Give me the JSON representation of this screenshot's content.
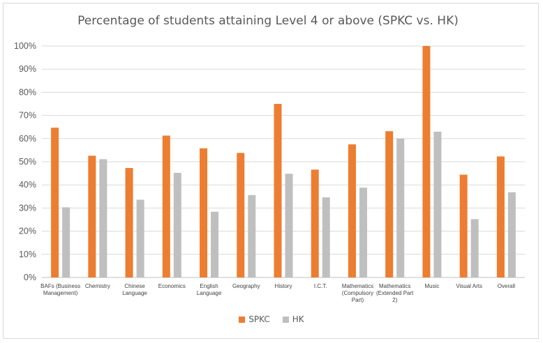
{
  "chart_data": {
    "type": "bar",
    "title": "Percentage of students attaining Level 4 or above (SPKC vs. HK)",
    "xlabel": "",
    "ylabel": "",
    "ylim": [
      0,
      100
    ],
    "yticks": [
      "0%",
      "10%",
      "20%",
      "30%",
      "40%",
      "50%",
      "60%",
      "70%",
      "80%",
      "90%",
      "100%"
    ],
    "grid": "horizontal",
    "legend_position": "bottom",
    "categories": [
      [
        "BAFs (Business",
        "Management)"
      ],
      [
        "Chemistry"
      ],
      [
        "Chinese",
        "Language"
      ],
      [
        "Economics"
      ],
      [
        "English",
        "Language"
      ],
      [
        "Geography"
      ],
      [
        "History"
      ],
      [
        "I.C.T."
      ],
      [
        "Mathematics",
        "(Compulsory",
        "Part)"
      ],
      [
        "Mathematics",
        "(Extended Part",
        "2)"
      ],
      [
        "Music"
      ],
      [
        "Visual Arts"
      ],
      [
        "Overall"
      ]
    ],
    "series": [
      {
        "name": "SPKC",
        "color": "#ED7D31",
        "values": [
          64.7,
          52.6,
          47.3,
          61.3,
          55.8,
          53.8,
          75.0,
          46.6,
          57.5,
          63.2,
          100.0,
          44.4,
          52.3
        ]
      },
      {
        "name": "HK",
        "color": "#BFBFBF",
        "values": [
          30.3,
          51.1,
          33.6,
          45.2,
          28.4,
          35.6,
          44.8,
          34.6,
          38.8,
          60.0,
          63.0,
          25.2,
          36.8
        ]
      }
    ]
  }
}
